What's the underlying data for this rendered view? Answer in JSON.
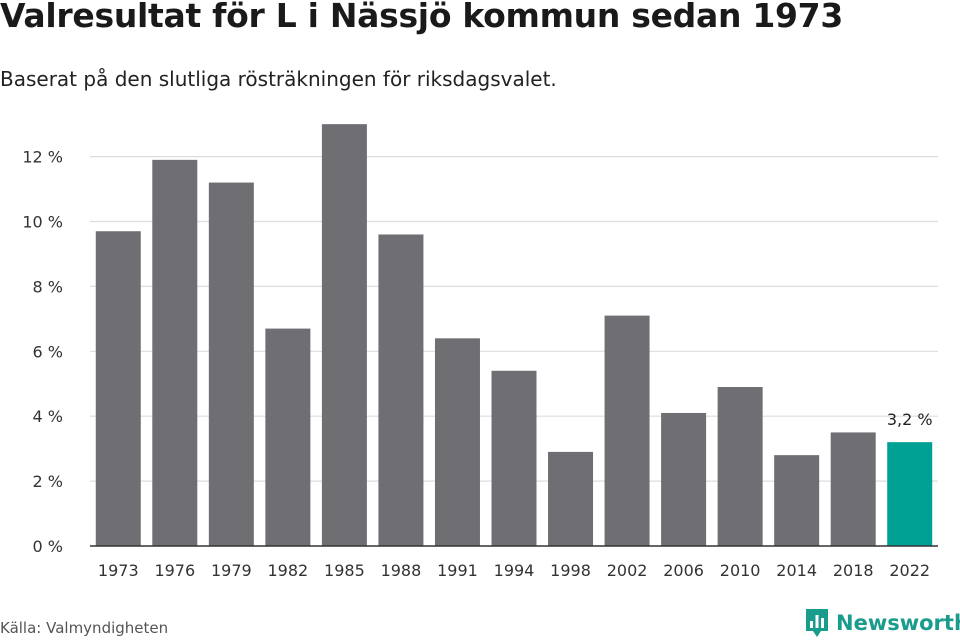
{
  "header": {
    "title": "Valresultat för L i Nässjö kommun sedan 1973",
    "subtitle": "Baserat på den slutliga rösträkningen för riksdagsvalet."
  },
  "footer": {
    "source": "Källa: Valmyndigheten",
    "brand": "Newsworthy",
    "brand_icon": "bar-chart-speech-bubble-icon"
  },
  "colors": {
    "bar": "#6f6e73",
    "highlight": "#00a195",
    "grid": "#dddddd",
    "axis": "#333333",
    "brand": "#1a9c8c"
  },
  "chart_data": {
    "type": "bar",
    "categories": [
      "1973",
      "1976",
      "1979",
      "1982",
      "1985",
      "1988",
      "1991",
      "1994",
      "1998",
      "2002",
      "2006",
      "2010",
      "2014",
      "2018",
      "2022"
    ],
    "values": [
      9.7,
      11.9,
      11.2,
      6.7,
      13.0,
      9.6,
      6.4,
      5.4,
      2.9,
      7.1,
      4.1,
      4.9,
      2.8,
      3.5,
      3.2
    ],
    "highlight_index": 14,
    "data_labels": [
      {
        "index": 14,
        "text": "3,2 %"
      }
    ],
    "yticks": [
      0,
      2,
      4,
      6,
      8,
      10,
      12
    ],
    "ytick_labels": [
      "0 %",
      "2 %",
      "4 %",
      "6 %",
      "8 %",
      "10 %",
      "12 %"
    ],
    "ylim": [
      0,
      13.4
    ],
    "grid": true,
    "legend": "none"
  }
}
